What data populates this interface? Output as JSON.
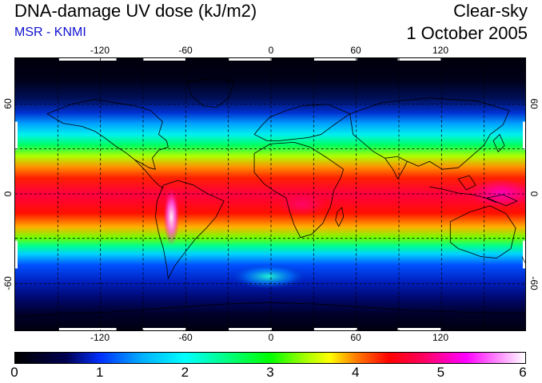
{
  "header": {
    "title": "DNA-damage UV dose (kJ/m2)",
    "subtitle": "MSR - KNMI",
    "sky_condition": "Clear-sky",
    "date": "1 October 2005"
  },
  "map": {
    "longitude_labels": [
      "-120",
      "-60",
      "0",
      "60",
      "120"
    ],
    "latitude_labels_left": [
      "60",
      "0",
      "-60"
    ],
    "latitude_labels_right": [
      "60",
      "0",
      "-60"
    ],
    "colors": {
      "background_dark": "#00001a",
      "coastline": "#000000",
      "grid": "#000000"
    }
  },
  "colorbar": {
    "labels": [
      "0",
      "1",
      "2",
      "3",
      "4",
      "5",
      "6"
    ],
    "min": 0,
    "max": 6,
    "stops": [
      {
        "value": 0.0,
        "color": "#000000"
      },
      {
        "value": 0.6,
        "color": "#000050"
      },
      {
        "value": 1.0,
        "color": "#0030ff"
      },
      {
        "value": 1.5,
        "color": "#00b0ff"
      },
      {
        "value": 2.0,
        "color": "#00ffff"
      },
      {
        "value": 2.5,
        "color": "#00ff80"
      },
      {
        "value": 3.0,
        "color": "#00ff00"
      },
      {
        "value": 3.4,
        "color": "#a0ff00"
      },
      {
        "value": 3.7,
        "color": "#ffff00"
      },
      {
        "value": 4.0,
        "color": "#ff8000"
      },
      {
        "value": 4.4,
        "color": "#ff0000"
      },
      {
        "value": 4.8,
        "color": "#ff0060"
      },
      {
        "value": 5.3,
        "color": "#ff00ff"
      },
      {
        "value": 6.0,
        "color": "#ffffff"
      }
    ]
  }
}
